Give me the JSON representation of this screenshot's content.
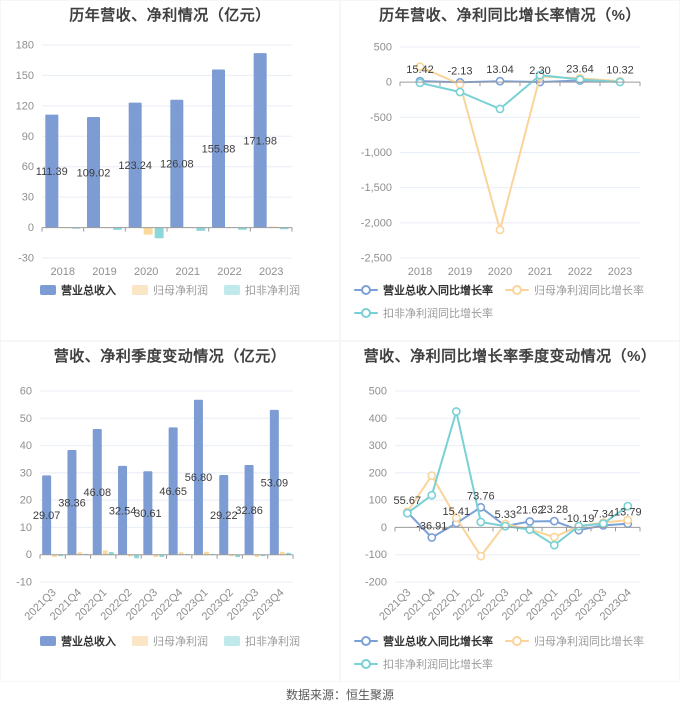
{
  "footer": {
    "source_label": "数据来源：恒生聚源"
  },
  "colors": {
    "grid": "#E8EEF6",
    "axis_line": "#9B9B9B",
    "tick_label": "#8F8F8F",
    "data_label": "#3D3D3D",
    "title": "#404040",
    "revenue_blue": "#7D9CD4",
    "profit_orange": "#FAD99B",
    "deducted_teal": "#8BD7DA"
  },
  "chart_data": [
    {
      "type": "bar",
      "title": "历年营收、净利情况（亿元）",
      "categories": [
        "2018",
        "2019",
        "2020",
        "2021",
        "2022",
        "2023"
      ],
      "ylim": [
        -30,
        180
      ],
      "ystep": 30,
      "rotate_x": false,
      "grid": true,
      "legend_position": "bottom",
      "series": [
        {
          "name": "营业总收入",
          "type": "bar",
          "color": "#7D9CD4",
          "swatch": "#7D9CD4",
          "values": [
            111.39,
            109.02,
            123.24,
            126.08,
            155.88,
            171.98
          ],
          "labels": [
            "111.39",
            "109.02",
            "123.24",
            "126.08",
            "155.88",
            "171.98"
          ]
        },
        {
          "name": "归母净利润",
          "type": "bar",
          "color": "#FAD99B",
          "swatch": "#FAE5C4",
          "values": [
            0.4,
            0.3,
            -6.9,
            0.4,
            0.6,
            0.9
          ]
        },
        {
          "name": "扣非净利润",
          "type": "bar",
          "color": "#8BD7DA",
          "swatch": "#BFE9EB",
          "values": [
            -1.2,
            -2.3,
            -10.5,
            -3.2,
            -2.2,
            -1.6
          ]
        }
      ]
    },
    {
      "type": "line",
      "title": "历年营收、净利同比增长率情况（%）",
      "categories": [
        "2018",
        "2019",
        "2020",
        "2021",
        "2022",
        "2023"
      ],
      "ylim": [
        -2500,
        500
      ],
      "ystep": 500,
      "rotate_x": false,
      "grid": true,
      "legend_position": "bottom",
      "series": [
        {
          "name": "营业总收入同比增长率",
          "type": "line",
          "color": "#7BA0D8",
          "values": [
            15.42,
            -2.13,
            13.04,
            2.3,
            23.64,
            10.32
          ],
          "labels": [
            "15.42",
            "-2.13",
            "13.04",
            "2.30",
            "23.64",
            "10.32"
          ]
        },
        {
          "name": "归母净利润同比增长率",
          "type": "line",
          "color": "#FAD49A",
          "values": [
            220,
            -30,
            -2100,
            80,
            55,
            12
          ]
        },
        {
          "name": "扣非净利润同比增长率",
          "type": "line",
          "color": "#79D1D6",
          "values": [
            -10,
            -140,
            -380,
            100,
            38,
            3
          ]
        }
      ]
    },
    {
      "type": "bar",
      "title": "营收、净利季度变动情况（亿元）",
      "categories": [
        "2021Q3",
        "2021Q4",
        "2022Q1",
        "2022Q2",
        "2022Q3",
        "2022Q4",
        "2023Q1",
        "2023Q2",
        "2023Q3",
        "2023Q4"
      ],
      "ylim": [
        -10,
        60
      ],
      "ystep": 10,
      "rotate_x": true,
      "grid": true,
      "legend_position": "bottom",
      "series": [
        {
          "name": "营业总收入",
          "type": "bar",
          "color": "#7D9CD4",
          "swatch": "#7D9CD4",
          "values": [
            29.07,
            38.36,
            46.08,
            32.54,
            30.61,
            46.65,
            56.8,
            29.22,
            32.86,
            53.09
          ],
          "labels": [
            "29.07",
            "38.36",
            "46.08",
            "32.54",
            "30.61",
            "46.65",
            "56.80",
            "29.22",
            "32.86",
            "53.09"
          ]
        },
        {
          "name": "归母净利润",
          "type": "bar",
          "color": "#FAD99B",
          "swatch": "#FAE5C4",
          "values": [
            -0.8,
            0.9,
            1.6,
            -0.6,
            -0.8,
            0.9,
            1.1,
            -0.5,
            -0.8,
            1.1
          ]
        },
        {
          "name": "扣非净利润",
          "type": "bar",
          "color": "#8BD7DA",
          "swatch": "#BFE9EB",
          "values": [
            -0.5,
            0.3,
            1.0,
            -1.3,
            -0.8,
            0.3,
            0.3,
            -0.9,
            -0.5,
            0.7
          ]
        }
      ]
    },
    {
      "type": "line",
      "title": "营收、净利同比增长率季度变动情况（%）",
      "categories": [
        "2021Q3",
        "2021Q4",
        "2022Q1",
        "2022Q2",
        "2022Q3",
        "2022Q4",
        "2023Q1",
        "2023Q2",
        "2023Q3",
        "2023Q4"
      ],
      "ylim": [
        -200,
        500
      ],
      "ystep": 100,
      "rotate_x": true,
      "grid": true,
      "legend_position": "bottom",
      "series": [
        {
          "name": "营业总收入同比增长率",
          "type": "line",
          "color": "#7BA0D8",
          "values": [
            55.67,
            -36.91,
            15.41,
            73.76,
            5.33,
            21.62,
            23.28,
            -10.19,
            7.34,
            13.79
          ],
          "labels": [
            "55.67",
            "-36.91",
            "15.41",
            "73.76",
            "5.33",
            "21.62",
            "23.28",
            "-10.19",
            "7.34",
            "13.79"
          ]
        },
        {
          "name": "归母净利润同比增长率",
          "type": "line",
          "color": "#FAD49A",
          "values": [
            57,
            190,
            35,
            -105,
            13,
            -8,
            -35,
            5,
            18,
            27
          ]
        },
        {
          "name": "扣非净利润同比增长率",
          "type": "line",
          "color": "#79D1D6",
          "values": [
            52,
            118,
            425,
            20,
            5,
            -8,
            -65,
            5,
            14,
            78
          ]
        }
      ]
    }
  ]
}
